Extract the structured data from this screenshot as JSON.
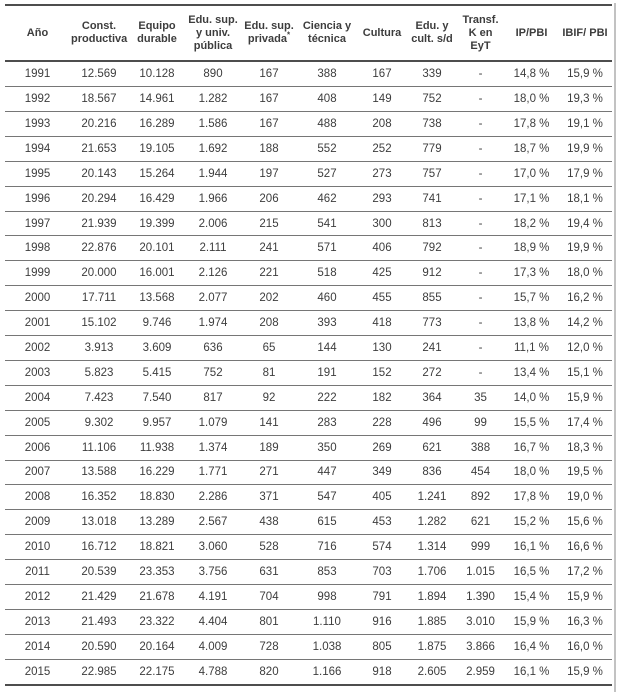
{
  "table": {
    "columns": [
      {
        "key": "ano",
        "label": "Año"
      },
      {
        "key": "const-productiva",
        "label": "Const. productiva"
      },
      {
        "key": "equipo-durable",
        "label": "Equipo durable"
      },
      {
        "key": "edu-sup-univ-publica",
        "label": "Edu. sup. y univ. pública"
      },
      {
        "key": "edu-sup-privada",
        "label": "Edu. sup. privada*"
      },
      {
        "key": "ciencia-y-tecnica",
        "label": "Ciencia y técnica"
      },
      {
        "key": "cultura",
        "label": "Cultura"
      },
      {
        "key": "edu-y-cult-sd",
        "label": "Edu. y cult. s/d"
      },
      {
        "key": "transf-k-en-eyt",
        "label": "Transf. K en EyT"
      },
      {
        "key": "ip-pbi",
        "label": "IP/PBI"
      },
      {
        "key": "ibif-pbi",
        "label": "IBIF/ PBI"
      }
    ],
    "rows": [
      [
        "1991",
        "12.569",
        "10.128",
        "890",
        "167",
        "388",
        "167",
        "339",
        "-",
        "14,8 %",
        "15,9 %"
      ],
      [
        "1992",
        "18.567",
        "14.961",
        "1.282",
        "167",
        "408",
        "149",
        "752",
        "-",
        "18,0 %",
        "19,3 %"
      ],
      [
        "1993",
        "20.216",
        "16.289",
        "1.586",
        "167",
        "488",
        "208",
        "738",
        "-",
        "17,8 %",
        "19,1 %"
      ],
      [
        "1994",
        "21.653",
        "19.105",
        "1.692",
        "188",
        "552",
        "252",
        "779",
        "-",
        "18,7 %",
        "19,9 %"
      ],
      [
        "1995",
        "20.143",
        "15.264",
        "1.944",
        "197",
        "527",
        "273",
        "757",
        "-",
        "17,0 %",
        "17,9 %"
      ],
      [
        "1996",
        "20.294",
        "16.429",
        "1.966",
        "206",
        "462",
        "293",
        "741",
        "-",
        "17,1 %",
        "18,1 %"
      ],
      [
        "1997",
        "21.939",
        "19.399",
        "2.006",
        "215",
        "541",
        "300",
        "813",
        "-",
        "18,2 %",
        "19,4 %"
      ],
      [
        "1998",
        "22.876",
        "20.101",
        "2.111",
        "241",
        "571",
        "406",
        "792",
        "-",
        "18,9 %",
        "19,9 %"
      ],
      [
        "1999",
        "20.000",
        "16.001",
        "2.126",
        "221",
        "518",
        "425",
        "912",
        "-",
        "17,3 %",
        "18,0 %"
      ],
      [
        "2000",
        "17.711",
        "13.568",
        "2.077",
        "202",
        "460",
        "455",
        "855",
        "-",
        "15,7 %",
        "16,2 %"
      ],
      [
        "2001",
        "15.102",
        "9.746",
        "1.974",
        "208",
        "393",
        "418",
        "773",
        "-",
        "13,8 %",
        "14,2 %"
      ],
      [
        "2002",
        "3.913",
        "3.609",
        "636",
        "65",
        "144",
        "130",
        "241",
        "-",
        "11,1 %",
        "12,0 %"
      ],
      [
        "2003",
        "5.823",
        "5.415",
        "752",
        "81",
        "191",
        "152",
        "272",
        "-",
        "13,4 %",
        "15,1 %"
      ],
      [
        "2004",
        "7.423",
        "7.540",
        "817",
        "92",
        "222",
        "182",
        "364",
        "35",
        "14,0 %",
        "15,9 %"
      ],
      [
        "2005",
        "9.302",
        "9.957",
        "1.079",
        "141",
        "283",
        "228",
        "496",
        "99",
        "15,5 %",
        "17,4 %"
      ],
      [
        "2006",
        "11.106",
        "11.938",
        "1.374",
        "189",
        "350",
        "269",
        "621",
        "388",
        "16,7 %",
        "18,3 %"
      ],
      [
        "2007",
        "13.588",
        "16.229",
        "1.771",
        "271",
        "447",
        "349",
        "836",
        "454",
        "18,0 %",
        "19,5 %"
      ],
      [
        "2008",
        "16.352",
        "18.830",
        "2.286",
        "371",
        "547",
        "405",
        "1.241",
        "892",
        "17,8 %",
        "19,0 %"
      ],
      [
        "2009",
        "13.018",
        "13.289",
        "2.567",
        "438",
        "615",
        "453",
        "1.282",
        "621",
        "15,2 %",
        "15,6 %"
      ],
      [
        "2010",
        "16.712",
        "18.821",
        "3.060",
        "528",
        "716",
        "574",
        "1.314",
        "999",
        "16,1 %",
        "16,6 %"
      ],
      [
        "2011",
        "20.539",
        "23.353",
        "3.756",
        "631",
        "853",
        "703",
        "1.706",
        "1.015",
        "16,5 %",
        "17,2 %"
      ],
      [
        "2012",
        "21.429",
        "21.678",
        "4.191",
        "704",
        "998",
        "791",
        "1.894",
        "1.390",
        "15,4 %",
        "15,9 %"
      ],
      [
        "2013",
        "21.493",
        "23.322",
        "4.404",
        "801",
        "1.110",
        "916",
        "1.885",
        "3.010",
        "15,9 %",
        "16,3 %"
      ],
      [
        "2014",
        "20.590",
        "20.164",
        "4.009",
        "728",
        "1.038",
        "805",
        "1.875",
        "3.866",
        "16,4 %",
        "16,0 %"
      ],
      [
        "2015",
        "22.985",
        "22.175",
        "4.788",
        "820",
        "1.166",
        "918",
        "2.605",
        "2.959",
        "16,1 %",
        "15,9 %"
      ]
    ],
    "colors": {
      "text": "#3d3d3d",
      "heavy_rule": "#4d4d4d",
      "row_rule": "#767676"
    }
  }
}
